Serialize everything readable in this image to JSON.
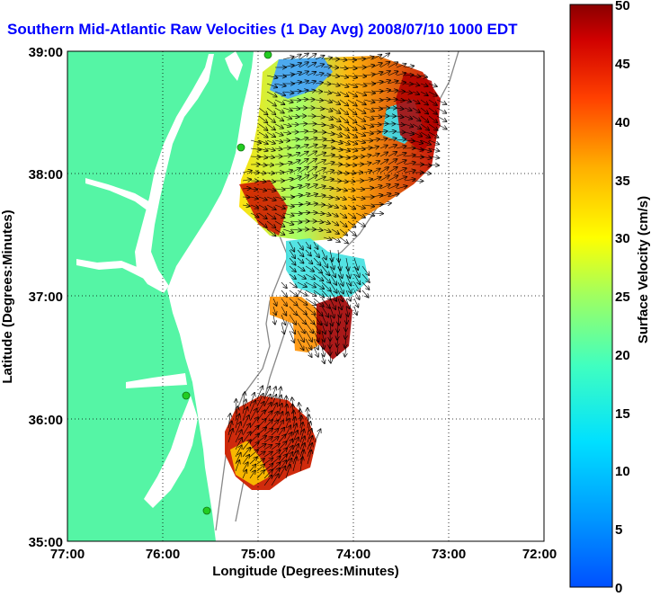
{
  "title": "Southern Mid-Atlantic Raw Velocities (1 Day Avg) 2008/07/10 1000 EDT",
  "axes": {
    "xlabel": "Longitude (Degrees:Minutes)",
    "ylabel": "Latitude (Degrees:Minutes)",
    "x_ticks": [
      "77:00",
      "76:00",
      "75:00",
      "74:00",
      "73:00",
      "72:00"
    ],
    "y_ticks": [
      "39:00",
      "38:00",
      "37:00",
      "36:00",
      "35:00"
    ],
    "xlim": [
      -77,
      -72
    ],
    "ylim": [
      35,
      39
    ],
    "grid": "dotted"
  },
  "colorbar": {
    "label": "Surface Velocity (cm/s)",
    "ticks": [
      "50",
      "45",
      "40",
      "35",
      "30",
      "25",
      "20",
      "15",
      "10",
      "5",
      "0"
    ],
    "range": [
      0,
      50
    ],
    "colormap": "jet"
  },
  "colors": {
    "title": "#0000ff",
    "land": "#55f5a5",
    "station": "#22cc22",
    "arrows": "#000000",
    "bathymetry": "#888888"
  },
  "stations": [
    {
      "lon": -75.1,
      "lat": 39.0
    },
    {
      "lon": -75.16,
      "lat": 38.2
    },
    {
      "lon": -75.5,
      "lat": 36.2
    },
    {
      "lon": -75.4,
      "lat": 35.25
    }
  ]
}
